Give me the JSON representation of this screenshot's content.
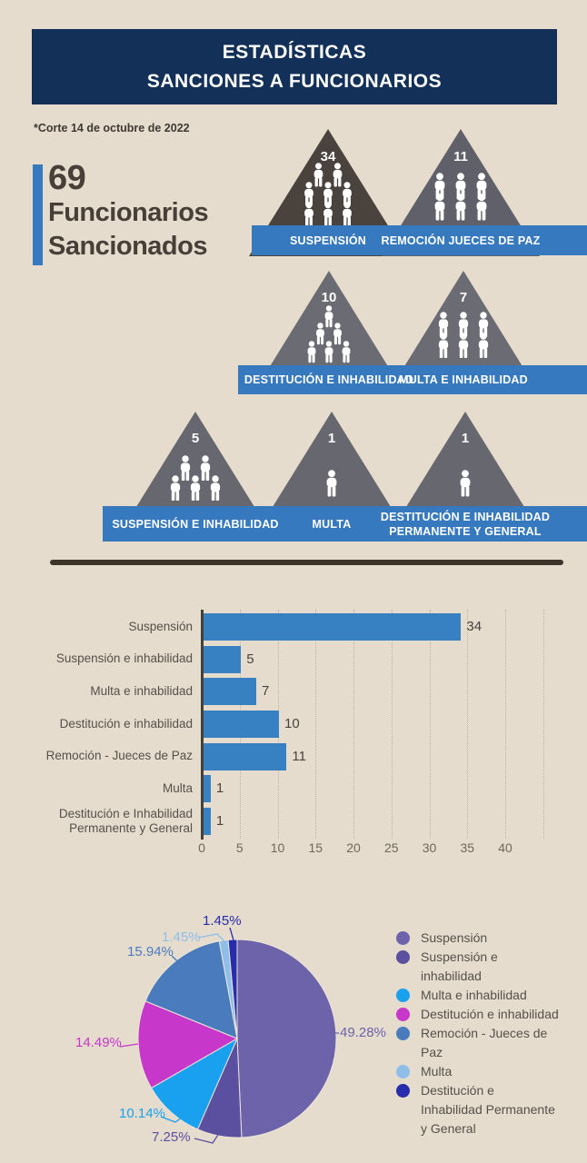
{
  "page": {
    "bg": "#E5DCCE"
  },
  "header": {
    "line1": "ESTADÍSTICAS",
    "line2": "SANCIONES A FUNCIONARIOS",
    "bg": "#123058"
  },
  "note": {
    "text": "*Corte 14 de octubre de 2022"
  },
  "summary": {
    "count": "69",
    "line1": "Funcionarios",
    "line2": "Sancionados",
    "accent_color": "#3779BE"
  },
  "pyramids": {
    "banner_color": "#3779BE",
    "rows": [
      {
        "items": [
          {
            "value": "34",
            "label": "SUSPENSIÓN"
          },
          {
            "value": "11",
            "label": "REMOCIÓN JUECES DE PAZ"
          }
        ]
      },
      {
        "items": [
          {
            "value": "10",
            "label": "DESTITUCIÓN E INHABILIDAD"
          },
          {
            "value": "7",
            "label": "MULTA E INHABILIDAD"
          }
        ]
      },
      {
        "items": [
          {
            "value": "5",
            "label": "SUSPENSIÓN E INHABILIDAD"
          },
          {
            "value": "1",
            "label": "MULTA"
          },
          {
            "value": "1",
            "label": "DESTITUCIÓN E INHABILIDAD PERMANENTE Y GENERAL"
          }
        ]
      }
    ]
  },
  "chart_data": [
    {
      "type": "bar",
      "orientation": "horizontal",
      "categories": [
        "Suspensión",
        "Suspensión e inhabilidad",
        "Multa e inhabilidad",
        "Destitución e inhabilidad",
        "Remoción - Jueces de Paz",
        "Multa",
        "Destitución e Inhabilidad Permanente y General"
      ],
      "values": [
        34,
        5,
        7,
        10,
        11,
        1,
        1
      ],
      "xticks": [
        0,
        5,
        10,
        15,
        20,
        25,
        30,
        35,
        40
      ],
      "xlim": [
        0,
        45
      ],
      "bar_color": "#3780C2",
      "grid": true,
      "title": "",
      "xlabel": "",
      "ylabel": ""
    },
    {
      "type": "pie",
      "labels": [
        "Suspensión",
        "Suspensión e inhabilidad",
        "Multa e inhabilidad",
        "Destitución e inhabilidad",
        "Remoción - Jueces de Paz",
        "Multa",
        "Destitución e Inhabilidad Permanente y General"
      ],
      "values": [
        49.28,
        7.25,
        10.14,
        14.49,
        15.94,
        1.45,
        1.45
      ],
      "pct_labels": [
        "49.28%",
        "7.25%",
        "10.14%",
        "14.49%",
        "15.94%",
        "1.45%",
        "1.45%"
      ],
      "colors": [
        "#6C63AA",
        "#5B50A0",
        "#19A1EF",
        "#C737C9",
        "#4A7CBD",
        "#8FBEE9",
        "#272CAC"
      ],
      "legend_position": "right",
      "start_angle_deg": -90,
      "direction": "clockwise"
    }
  ],
  "divider_color": "#3D342C"
}
